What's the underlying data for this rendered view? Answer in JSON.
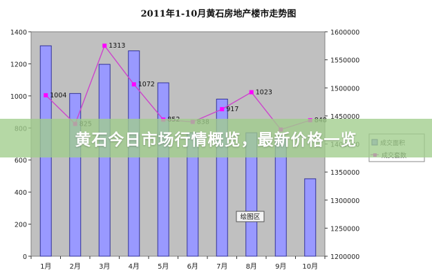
{
  "banner": {
    "text": "黄石今日市场行情概览，最新价格一览"
  },
  "colors": {
    "plot_bg": "#c0c0c0",
    "bar_fill": "#9999ff",
    "bar_stroke": "#333399",
    "line": "#cc44cc",
    "marker": "#ff00ff"
  },
  "chart_data": {
    "type": "bar",
    "title": "2011年1-10月黄石房地产楼市走势图",
    "categories": [
      "1月",
      "2月",
      "3月",
      "4月",
      "5月",
      "6月",
      "7月",
      "8月",
      "9月",
      "10月"
    ],
    "y_left": {
      "ylim": [
        0,
        1400
      ],
      "ticks": [
        "0",
        "200",
        "400",
        "600",
        "800",
        "1000",
        "1200",
        "1400"
      ]
    },
    "y_right": {
      "ylim": [
        1200000,
        1600000
      ],
      "ticks": [
        "1200000",
        "1250000",
        "1300000",
        "1350000",
        "1400000",
        "1450000",
        "1500000",
        "1550000",
        "1600000"
      ]
    },
    "series": [
      {
        "name": "成交面积",
        "type": "bar",
        "axis": "right",
        "values": [
          1575000,
          1490000,
          1542000,
          1566000,
          1509000,
          1420000,
          1480000,
          1420000,
          1410000,
          1338000
        ]
      },
      {
        "name": "成交套数",
        "type": "line",
        "axis": "left",
        "values": [
          1004,
          825,
          1313,
          1072,
          852,
          838,
          917,
          1023,
          790,
          848
        ],
        "labels": [
          "1004",
          "825",
          "1313",
          "1072",
          "852",
          "838",
          "917",
          "1023",
          "",
          "848"
        ]
      }
    ],
    "annotation": "绘图区",
    "legend_position": "right",
    "grid": false
  }
}
